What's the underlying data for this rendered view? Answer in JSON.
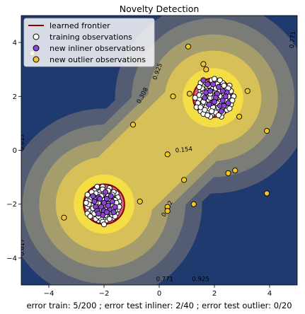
{
  "chart_data": {
    "type": "scatter",
    "title": "Novelty Detection",
    "xlabel": "error train: 5/200 ; error test inliner: 2/40 ; error test outlier: 0/20",
    "ylabel": "",
    "xlim": [
      -5,
      5
    ],
    "ylim": [
      -5,
      5
    ],
    "xticks": [
      -4,
      -2,
      0,
      2,
      4
    ],
    "yticks": [
      -4,
      -2,
      0,
      2,
      4
    ],
    "xtick_labels": [
      "−4",
      "−2",
      "0",
      "2",
      "4"
    ],
    "ytick_labels": [
      "−4",
      "−2",
      "0",
      "2",
      "4"
    ],
    "legend_position": "top-left",
    "legend": [
      {
        "label": "learned frontier",
        "kind": "line",
        "color": "#8b0000"
      },
      {
        "label": "training observations",
        "kind": "marker",
        "color": "#ffffff"
      },
      {
        "label": "new inliner observations",
        "kind": "marker",
        "color": "#8e44d6"
      },
      {
        "label": "new outlier observations",
        "kind": "marker",
        "color": "#f2c52b"
      }
    ],
    "contour_labels": [
      {
        "text": "0.308",
        "x": -0.55,
        "y": 2.0,
        "rotate": -62
      },
      {
        "text": "0.154",
        "x": 0.9,
        "y": -0.05,
        "rotate": -6
      },
      {
        "text": "0.462",
        "x": 0.35,
        "y": -2.2,
        "rotate": -62
      },
      {
        "text": "0.771",
        "x": 4.9,
        "y": 4.1,
        "rotate": -85
      },
      {
        "text": "0.617",
        "x": -4.9,
        "y": 0.3,
        "rotate": -90
      },
      {
        "text": "0.617",
        "x": -4.9,
        "y": -3.6,
        "rotate": -90
      },
      {
        "text": "0.925",
        "x": 0.0,
        "y": 2.9,
        "rotate": -70
      },
      {
        "text": "0.771",
        "x": 0.2,
        "y": -4.85,
        "rotate": 0
      },
      {
        "text": "0.925",
        "x": 1.5,
        "y": -4.85,
        "rotate": 0
      }
    ],
    "frontier_centers": [
      {
        "x": 1.95,
        "y": 1.95,
        "rx": 0.72,
        "ry": 0.72
      },
      {
        "x": -2.0,
        "y": -2.0,
        "rx": 0.74,
        "ry": 0.74
      }
    ],
    "series": [
      {
        "name": "training observations",
        "color": "#ffffff",
        "points": [
          [
            1.55,
            1.65
          ],
          [
            1.7,
            2.3
          ],
          [
            1.9,
            2.45
          ],
          [
            2.1,
            2.4
          ],
          [
            2.3,
            2.3
          ],
          [
            2.5,
            2.1
          ],
          [
            2.55,
            1.8
          ],
          [
            2.4,
            1.5
          ],
          [
            2.2,
            1.35
          ],
          [
            1.9,
            1.3
          ],
          [
            1.6,
            1.5
          ],
          [
            1.45,
            1.9
          ],
          [
            1.5,
            2.2
          ],
          [
            1.8,
            2.0
          ],
          [
            2.0,
            1.7
          ],
          [
            2.2,
            2.0
          ],
          [
            1.85,
            1.6
          ],
          [
            2.35,
            1.75
          ],
          [
            1.65,
            2.05
          ],
          [
            2.05,
            2.2
          ],
          [
            1.75,
            1.4
          ],
          [
            2.45,
            2.35
          ],
          [
            1.6,
            2.4
          ],
          [
            2.25,
            1.55
          ],
          [
            1.95,
            2.05
          ],
          [
            2.6,
            1.95
          ],
          [
            1.4,
            1.75
          ],
          [
            2.15,
            1.45
          ],
          [
            1.85,
            2.25
          ],
          [
            2.3,
            2.5
          ],
          [
            1.7,
            1.75
          ],
          [
            2.0,
            1.5
          ],
          [
            2.4,
            1.95
          ],
          [
            1.55,
            2.1
          ],
          [
            1.95,
            1.85
          ],
          [
            2.6,
            2.2
          ],
          [
            1.5,
            1.45
          ],
          [
            2.2,
            2.2
          ],
          [
            1.8,
            1.55
          ],
          [
            2.1,
            1.9
          ],
          [
            2.5,
            1.6
          ],
          [
            1.65,
            1.9
          ],
          [
            2.35,
            2.1
          ],
          [
            1.9,
            2.6
          ],
          [
            2.05,
            1.4
          ],
          [
            1.75,
            2.35
          ],
          [
            2.45,
            1.5
          ],
          [
            1.6,
            1.35
          ],
          [
            2.15,
            2.55
          ],
          [
            1.45,
            2.05
          ],
          [
            2.7,
            2.0
          ],
          [
            1.3,
            1.95
          ],
          [
            2.0,
            2.65
          ],
          [
            1.85,
            1.25
          ],
          [
            2.55,
            2.4
          ],
          [
            1.5,
            2.5
          ],
          [
            2.25,
            1.25
          ],
          [
            1.95,
            2.35
          ],
          [
            2.4,
            1.65
          ],
          [
            1.7,
            1.6
          ],
          [
            2.6,
            1.7
          ],
          [
            1.35,
            1.6
          ],
          [
            2.1,
            2.45
          ],
          [
            1.8,
            1.85
          ],
          [
            2.3,
            1.4
          ],
          [
            1.55,
            2.3
          ],
          [
            2.05,
            1.65
          ],
          [
            2.45,
            2.25
          ],
          [
            1.65,
            1.5
          ],
          [
            2.2,
            1.8
          ],
          [
            1.9,
            2.15
          ],
          [
            2.35,
            1.95
          ],
          [
            1.75,
            2.2
          ],
          [
            2.0,
            2.0
          ],
          [
            2.15,
            1.6
          ],
          [
            1.6,
            1.8
          ],
          [
            2.5,
            2.0
          ],
          [
            1.85,
            1.95
          ],
          [
            2.25,
            2.35
          ],
          [
            1.95,
            1.6
          ],
          [
            1.7,
            2.5
          ],
          [
            2.4,
            1.85
          ],
          [
            1.5,
            1.6
          ],
          [
            2.1,
            1.75
          ],
          [
            1.8,
            2.4
          ],
          [
            2.3,
            1.6
          ],
          [
            1.65,
            2.15
          ],
          [
            2.05,
            2.3
          ],
          [
            2.55,
            1.55
          ],
          [
            1.9,
            1.45
          ],
          [
            2.2,
            2.6
          ],
          [
            1.45,
            2.35
          ],
          [
            2.65,
            1.85
          ],
          [
            1.75,
            1.3
          ],
          [
            2.0,
            1.95
          ],
          [
            1.6,
            2.0
          ],
          [
            2.35,
            2.4
          ],
          [
            1.85,
            2.1
          ],
          [
            2.15,
            1.3
          ],
          [
            2.5,
            2.3
          ],
          [
            -2.5,
            -1.6
          ],
          [
            -2.3,
            -1.45
          ],
          [
            -2.05,
            -1.35
          ],
          [
            -1.8,
            -1.4
          ],
          [
            -1.55,
            -1.6
          ],
          [
            -1.45,
            -1.9
          ],
          [
            -1.5,
            -2.2
          ],
          [
            -1.65,
            -2.5
          ],
          [
            -1.9,
            -2.6
          ],
          [
            -2.2,
            -2.6
          ],
          [
            -2.45,
            -2.4
          ],
          [
            -2.6,
            -2.1
          ],
          [
            -2.6,
            -1.85
          ],
          [
            -2.2,
            -1.8
          ],
          [
            -1.9,
            -1.95
          ],
          [
            -2.0,
            -2.3
          ],
          [
            -2.3,
            -2.2
          ],
          [
            -1.75,
            -2.15
          ],
          [
            -2.15,
            -1.55
          ],
          [
            -1.7,
            -1.75
          ],
          [
            -2.4,
            -1.95
          ],
          [
            -1.95,
            -1.65
          ],
          [
            -2.05,
            -2.05
          ],
          [
            -1.85,
            -2.35
          ],
          [
            -2.35,
            -2.45
          ],
          [
            -1.6,
            -2.0
          ],
          [
            -2.5,
            -2.25
          ],
          [
            -2.25,
            -1.7
          ],
          [
            -1.8,
            -1.6
          ],
          [
            -2.0,
            -2.5
          ],
          [
            -2.55,
            -1.7
          ],
          [
            -1.5,
            -1.75
          ],
          [
            -2.3,
            -2.0
          ],
          [
            -1.95,
            -2.15
          ],
          [
            -2.1,
            -1.9
          ],
          [
            -1.7,
            -2.4
          ],
          [
            -2.4,
            -1.6
          ],
          [
            -1.85,
            -1.85
          ],
          [
            -2.15,
            -2.4
          ],
          [
            -2.6,
            -2.35
          ],
          [
            -1.55,
            -2.35
          ],
          [
            -2.25,
            -1.35
          ],
          [
            -2.05,
            -1.75
          ],
          [
            -1.75,
            -1.95
          ],
          [
            -2.45,
            -2.05
          ],
          [
            -1.9,
            -2.45
          ],
          [
            -2.3,
            -1.85
          ],
          [
            -1.65,
            -1.55
          ],
          [
            -2.1,
            -2.2
          ],
          [
            -2.5,
            -1.85
          ],
          [
            -1.8,
            -2.1
          ],
          [
            -2.2,
            -2.05
          ],
          [
            -1.6,
            -2.25
          ],
          [
            -2.35,
            -1.5
          ],
          [
            -2.0,
            -1.6
          ],
          [
            -1.85,
            -1.5
          ],
          [
            -2.4,
            -2.3
          ],
          [
            -1.7,
            -2.05
          ],
          [
            -2.15,
            -1.65
          ],
          [
            -1.95,
            -2.4
          ],
          [
            -2.55,
            -2.0
          ],
          [
            -1.5,
            -2.05
          ],
          [
            -2.25,
            -2.3
          ],
          [
            -2.05,
            -1.45
          ],
          [
            -1.75,
            -2.3
          ],
          [
            -2.45,
            -1.75
          ],
          [
            -1.9,
            -1.75
          ],
          [
            -2.3,
            -2.55
          ],
          [
            -1.6,
            -1.85
          ],
          [
            -2.1,
            -2.55
          ],
          [
            -2.65,
            -1.95
          ],
          [
            -1.45,
            -2.1
          ],
          [
            -2.2,
            -1.95
          ],
          [
            -1.8,
            -2.55
          ],
          [
            -2.4,
            -2.15
          ],
          [
            -2.0,
            -1.85
          ],
          [
            -1.65,
            -2.15
          ],
          [
            -2.3,
            -1.6
          ],
          [
            -1.95,
            -2.05
          ],
          [
            -2.15,
            -2.15
          ],
          [
            -2.5,
            -2.45
          ],
          [
            -1.55,
            -1.95
          ],
          [
            -2.05,
            -2.65
          ],
          [
            -2.35,
            -1.75
          ],
          [
            -1.85,
            -1.7
          ],
          [
            -2.2,
            -2.45
          ],
          [
            -1.7,
            -1.65
          ],
          [
            -2.6,
            -1.65
          ],
          [
            -2.0,
            -2.75
          ],
          [
            -1.8,
            -2.25
          ],
          [
            -2.45,
            -1.55
          ],
          [
            -1.9,
            -2.2
          ],
          [
            -2.25,
            -2.1
          ],
          [
            -1.6,
            -2.45
          ],
          [
            -2.1,
            -1.7
          ],
          [
            -1.75,
            -1.85
          ],
          [
            -2.35,
            -2.35
          ],
          [
            -2.0,
            -2.0
          ],
          [
            -1.85,
            -2.0
          ],
          [
            -2.3,
            -1.95
          ]
        ]
      },
      {
        "name": "new inliner observations",
        "color": "#8e44d6",
        "points": [
          [
            1.6,
            2.6
          ],
          [
            1.9,
            1.75
          ],
          [
            2.1,
            2.1
          ],
          [
            2.3,
            1.85
          ],
          [
            1.7,
            2.15
          ],
          [
            2.2,
            1.65
          ],
          [
            2.45,
            2.15
          ],
          [
            1.8,
            1.7
          ],
          [
            2.05,
            1.95
          ],
          [
            2.35,
            1.65
          ],
          [
            1.95,
            2.45
          ],
          [
            2.5,
            1.75
          ],
          [
            1.65,
            1.95
          ],
          [
            2.15,
            2.35
          ],
          [
            2.4,
            2.0
          ],
          [
            1.85,
            2.2
          ],
          [
            2.25,
            1.45
          ],
          [
            2.0,
            1.8
          ],
          [
            1.75,
            2.45
          ],
          [
            2.3,
            2.2
          ],
          [
            -2.4,
            -1.7
          ],
          [
            -1.9,
            -1.8
          ],
          [
            -2.1,
            -2.1
          ],
          [
            -1.8,
            -2.2
          ],
          [
            -2.2,
            -1.75
          ],
          [
            -2.0,
            -2.25
          ],
          [
            -1.7,
            -1.9
          ],
          [
            -2.3,
            -2.1
          ],
          [
            -1.95,
            -1.55
          ],
          [
            -2.05,
            -2.4
          ],
          [
            -1.85,
            -2.05
          ],
          [
            -2.25,
            -2.25
          ],
          [
            -1.6,
            -2.1
          ],
          [
            -2.15,
            -1.8
          ],
          [
            -1.9,
            -2.3
          ],
          [
            -2.35,
            -1.9
          ],
          [
            -1.75,
            -1.7
          ],
          [
            -2.0,
            -1.95
          ],
          [
            -2.2,
            -2.35
          ],
          [
            -1.65,
            -2.3
          ]
        ]
      },
      {
        "name": "new outlier observations",
        "color": "#f2c52b",
        "points": [
          [
            1.05,
            3.85
          ],
          [
            1.6,
            3.2
          ],
          [
            1.7,
            3.0
          ],
          [
            1.1,
            2.1
          ],
          [
            0.5,
            2.0
          ],
          [
            -0.95,
            0.95
          ],
          [
            3.9,
            0.72
          ],
          [
            0.3,
            -0.15
          ],
          [
            2.5,
            -0.85
          ],
          [
            2.75,
            -0.75
          ],
          [
            0.9,
            -1.1
          ],
          [
            3.9,
            -1.6
          ],
          [
            1.25,
            -2.0
          ],
          [
            -0.7,
            -1.9
          ],
          [
            0.3,
            -2.1
          ],
          [
            0.3,
            -2.25
          ],
          [
            -3.45,
            -2.5
          ],
          [
            -4.6,
            3.6
          ],
          [
            3.2,
            2.2
          ],
          [
            2.9,
            1.25
          ]
        ]
      }
    ]
  }
}
